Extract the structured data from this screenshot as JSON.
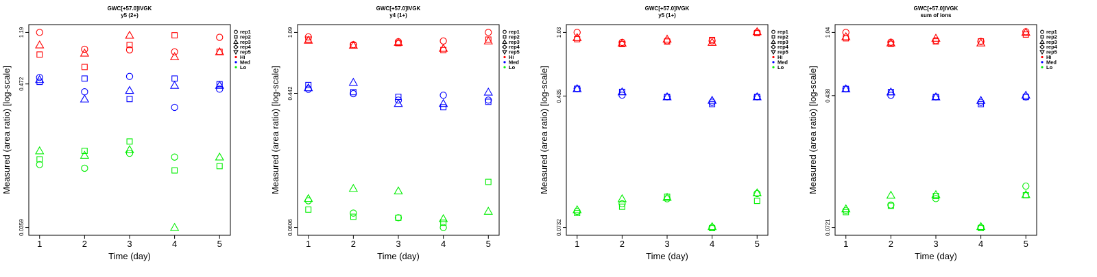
{
  "colors": {
    "Hi": "#ff0000",
    "Med": "#0000ff",
    "Lo": "#00ee00",
    "axis": "#000000"
  },
  "legend": {
    "placement": "right",
    "entries": [
      {
        "label": "rep1",
        "marker": "circle"
      },
      {
        "label": "rep2",
        "marker": "square"
      },
      {
        "label": "rep3",
        "marker": "triangle-up"
      },
      {
        "label": "rep4",
        "marker": "diamond"
      },
      {
        "label": "rep5",
        "marker": "triangle-down"
      },
      {
        "label": "Hi",
        "marker": "dot"
      },
      {
        "label": "Med",
        "marker": "dot"
      },
      {
        "label": "Lo",
        "marker": "dot"
      }
    ]
  },
  "chart_data": [
    {
      "type": "scatter",
      "title": "GWC[+57.0]IVGK",
      "subtitle": "y5 (2+)",
      "xlabel": "Time (day)",
      "ylabel": "Measured (area ratio) [log-scale]",
      "y_scale": "log",
      "xlim": [
        1,
        5
      ],
      "ylim": [
        0.0359,
        1.19
      ],
      "x_ticks": [
        "1",
        "2",
        "3",
        "4",
        "5"
      ],
      "y_ticks": [
        0.0359,
        0.472,
        1.19
      ],
      "y_tick_labels": [
        "0.0359",
        "0.472",
        "1.19"
      ],
      "series": [
        {
          "level": "Hi",
          "rep": "rep1",
          "points": [
            [
              1,
              1.19
            ],
            [
              2,
              0.88
            ],
            [
              3,
              0.87
            ],
            [
              4,
              0.84
            ],
            [
              5,
              1.09
            ]
          ]
        },
        {
          "level": "Hi",
          "rep": "rep2",
          "points": [
            [
              1,
              0.8
            ],
            [
              2,
              0.64
            ],
            [
              3,
              0.95
            ],
            [
              4,
              1.13
            ],
            [
              5,
              0.84
            ]
          ]
        },
        {
          "level": "Hi",
          "rep": "rep3",
          "points": [
            [
              1,
              0.95
            ],
            [
              2,
              0.82
            ],
            [
              3,
              1.13
            ],
            [
              4,
              0.77
            ],
            [
              5,
              0.84
            ]
          ]
        },
        {
          "level": "Med",
          "rep": "rep1",
          "points": [
            [
              1,
              0.53
            ],
            [
              2,
              0.41
            ],
            [
              3,
              0.54
            ],
            [
              4,
              0.31
            ],
            [
              5,
              0.43
            ]
          ]
        },
        {
          "level": "Med",
          "rep": "rep2",
          "points": [
            [
              1,
              0.49
            ],
            [
              2,
              0.52
            ],
            [
              3,
              0.36
            ],
            [
              4,
              0.52
            ],
            [
              5,
              0.47
            ]
          ]
        },
        {
          "level": "Med",
          "rep": "rep3",
          "points": [
            [
              1,
              0.51
            ],
            [
              2,
              0.36
            ],
            [
              3,
              0.42
            ],
            [
              4,
              0.46
            ],
            [
              5,
              0.46
            ]
          ]
        },
        {
          "level": "Lo",
          "rep": "rep1",
          "points": [
            [
              1,
              0.111
            ],
            [
              2,
              0.104
            ],
            [
              3,
              0.136
            ],
            [
              4,
              0.127
            ]
          ]
        },
        {
          "level": "Lo",
          "rep": "rep2",
          "points": [
            [
              1,
              0.122
            ],
            [
              2,
              0.142
            ],
            [
              3,
              0.168
            ],
            [
              4,
              0.1
            ],
            [
              5,
              0.108
            ]
          ]
        },
        {
          "level": "Lo",
          "rep": "rep3",
          "points": [
            [
              1,
              0.142
            ],
            [
              2,
              0.131
            ],
            [
              3,
              0.145
            ],
            [
              4,
              0.0359
            ],
            [
              5,
              0.127
            ]
          ]
        }
      ]
    },
    {
      "type": "scatter",
      "title": "GWC[+57.0]IVGK",
      "subtitle": "y4 (1+)",
      "xlabel": "Time (day)",
      "ylabel": "Measured (area ratio) [log-scale]",
      "y_scale": "log",
      "xlim": [
        1,
        5
      ],
      "ylim": [
        0.0606,
        1.09
      ],
      "x_ticks": [
        "1",
        "2",
        "3",
        "4",
        "5"
      ],
      "y_ticks": [
        0.0606,
        0.442,
        1.09
      ],
      "y_tick_labels": [
        "0.0606",
        "0.442",
        "1.09"
      ],
      "series": [
        {
          "level": "Hi",
          "rep": "rep1",
          "points": [
            [
              1,
              1.02
            ],
            [
              2,
              0.91
            ],
            [
              3,
              0.95
            ],
            [
              4,
              0.96
            ],
            [
              5,
              1.09
            ]
          ]
        },
        {
          "level": "Hi",
          "rep": "rep2",
          "points": [
            [
              1,
              0.98
            ],
            [
              2,
              0.9
            ],
            [
              3,
              0.93
            ],
            [
              4,
              0.84
            ],
            [
              5,
              0.98
            ]
          ]
        },
        {
          "level": "Hi",
          "rep": "rep3",
          "points": [
            [
              1,
              0.97
            ],
            [
              2,
              0.9
            ],
            [
              3,
              0.94
            ],
            [
              4,
              0.86
            ],
            [
              5,
              0.96
            ]
          ]
        },
        {
          "level": "Med",
          "rep": "rep1",
          "points": [
            [
              1,
              0.47
            ],
            [
              2,
              0.44
            ],
            [
              3,
              0.4
            ],
            [
              4,
              0.43
            ],
            [
              5,
              0.4
            ]
          ]
        },
        {
          "level": "Med",
          "rep": "rep2",
          "points": [
            [
              1,
              0.5
            ],
            [
              2,
              0.45
            ],
            [
              3,
              0.42
            ],
            [
              4,
              0.36
            ],
            [
              5,
              0.39
            ]
          ]
        },
        {
          "level": "Med",
          "rep": "rep3",
          "points": [
            [
              1,
              0.48
            ],
            [
              2,
              0.52
            ],
            [
              3,
              0.38
            ],
            [
              4,
              0.38
            ],
            [
              5,
              0.45
            ]
          ]
        },
        {
          "level": "Lo",
          "rep": "rep1",
          "points": [
            [
              1,
              0.09
            ],
            [
              2,
              0.075
            ],
            [
              3,
              0.07
            ],
            [
              4,
              0.0606
            ]
          ]
        },
        {
          "level": "Lo",
          "rep": "rep2",
          "points": [
            [
              1,
              0.079
            ],
            [
              2,
              0.071
            ],
            [
              3,
              0.07
            ],
            [
              4,
              0.065
            ],
            [
              5,
              0.119
            ]
          ]
        },
        {
          "level": "Lo",
          "rep": "rep3",
          "points": [
            [
              1,
              0.093
            ],
            [
              2,
              0.108
            ],
            [
              3,
              0.104
            ],
            [
              4,
              0.069
            ],
            [
              5,
              0.077
            ]
          ]
        }
      ]
    },
    {
      "type": "scatter",
      "title": "GWC[+57.0]IVGK",
      "subtitle": "y5 (1+)",
      "xlabel": "Time (day)",
      "ylabel": "Measured (area ratio) [log-scale]",
      "y_scale": "log",
      "xlim": [
        1,
        5
      ],
      "ylim": [
        0.0732,
        1.03
      ],
      "x_ticks": [
        "1",
        "2",
        "3",
        "4",
        "5"
      ],
      "y_ticks": [
        0.0732,
        0.435,
        1.03
      ],
      "y_tick_labels": [
        "0.0732",
        "0.435",
        "1.03"
      ],
      "series": [
        {
          "level": "Hi",
          "rep": "rep1",
          "points": [
            [
              1,
              1.03
            ],
            [
              2,
              0.9
            ],
            [
              3,
              0.92
            ],
            [
              4,
              0.92
            ],
            [
              5,
              1.03
            ]
          ]
        },
        {
          "level": "Hi",
          "rep": "rep2",
          "points": [
            [
              1,
              0.94
            ],
            [
              2,
              0.88
            ],
            [
              3,
              0.91
            ],
            [
              4,
              0.93
            ],
            [
              5,
              1.02
            ]
          ]
        },
        {
          "level": "Hi",
          "rep": "rep3",
          "points": [
            [
              1,
              0.96
            ],
            [
              2,
              0.89
            ],
            [
              3,
              0.94
            ],
            [
              4,
              0.9
            ],
            [
              5,
              1.04
            ]
          ]
        },
        {
          "level": "Med",
          "rep": "rep1",
          "points": [
            [
              1,
              0.48
            ],
            [
              2,
              0.44
            ],
            [
              3,
              0.43
            ],
            [
              4,
              0.4
            ],
            [
              5,
              0.43
            ]
          ]
        },
        {
          "level": "Med",
          "rep": "rep2",
          "points": [
            [
              1,
              0.48
            ],
            [
              2,
              0.46
            ],
            [
              3,
              0.43
            ],
            [
              4,
              0.39
            ],
            [
              5,
              0.43
            ]
          ]
        },
        {
          "level": "Med",
          "rep": "rep3",
          "points": [
            [
              1,
              0.48
            ],
            [
              2,
              0.46
            ],
            [
              3,
              0.43
            ],
            [
              4,
              0.41
            ],
            [
              5,
              0.43
            ]
          ]
        },
        {
          "level": "Lo",
          "rep": "rep1",
          "points": [
            [
              1,
              0.091
            ],
            [
              2,
              0.101
            ],
            [
              3,
              0.108
            ],
            [
              4,
              0.0732
            ],
            [
              5,
              0.116
            ]
          ]
        },
        {
          "level": "Lo",
          "rep": "rep2",
          "points": [
            [
              1,
              0.089
            ],
            [
              2,
              0.097
            ],
            [
              3,
              0.111
            ],
            [
              4,
              0.0726
            ],
            [
              5,
              0.105
            ]
          ]
        },
        {
          "level": "Lo",
          "rep": "rep3",
          "points": [
            [
              1,
              0.093
            ],
            [
              2,
              0.108
            ],
            [
              3,
              0.11
            ],
            [
              4,
              0.074
            ],
            [
              5,
              0.117
            ]
          ]
        }
      ]
    },
    {
      "type": "scatter",
      "title": "GWC[+57.0]IVGK",
      "subtitle": "sum of ions",
      "xlabel": "Time (day)",
      "ylabel": "Measured (area ratio) [log-scale]",
      "y_scale": "log",
      "xlim": [
        1,
        5
      ],
      "ylim": [
        0.0721,
        1.04
      ],
      "x_ticks": [
        "1",
        "2",
        "3",
        "4",
        "5"
      ],
      "y_ticks": [
        0.0721,
        0.438,
        1.04
      ],
      "y_tick_labels": [
        "0.0721",
        "0.438",
        "1.04"
      ],
      "series": [
        {
          "level": "Hi",
          "rep": "rep1",
          "points": [
            [
              1,
              1.04
            ],
            [
              2,
              0.91
            ],
            [
              3,
              0.93
            ],
            [
              4,
              0.92
            ],
            [
              5,
              1.05
            ]
          ]
        },
        {
          "level": "Hi",
          "rep": "rep2",
          "points": [
            [
              1,
              0.96
            ],
            [
              2,
              0.89
            ],
            [
              3,
              0.92
            ],
            [
              4,
              0.92
            ],
            [
              5,
              1.01
            ]
          ]
        },
        {
          "level": "Hi",
          "rep": "rep3",
          "points": [
            [
              1,
              0.98
            ],
            [
              2,
              0.9
            ],
            [
              3,
              0.96
            ],
            [
              4,
              0.9
            ],
            [
              5,
              1.04
            ]
          ]
        },
        {
          "level": "Med",
          "rep": "rep1",
          "points": [
            [
              1,
              0.48
            ],
            [
              2,
              0.44
            ],
            [
              3,
              0.43
            ],
            [
              4,
              0.4
            ],
            [
              5,
              0.43
            ]
          ]
        },
        {
          "level": "Med",
          "rep": "rep2",
          "points": [
            [
              1,
              0.48
            ],
            [
              2,
              0.46
            ],
            [
              3,
              0.43
            ],
            [
              4,
              0.39
            ],
            [
              5,
              0.43
            ]
          ]
        },
        {
          "level": "Med",
          "rep": "rep3",
          "points": [
            [
              1,
              0.48
            ],
            [
              2,
              0.46
            ],
            [
              3,
              0.43
            ],
            [
              4,
              0.41
            ],
            [
              5,
              0.44
            ]
          ]
        },
        {
          "level": "Lo",
          "rep": "rep1",
          "points": [
            [
              1,
              0.091
            ],
            [
              2,
              0.098
            ],
            [
              3,
              0.107
            ],
            [
              4,
              0.0721
            ],
            [
              5,
              0.127
            ]
          ]
        },
        {
          "level": "Lo",
          "rep": "rep2",
          "points": [
            [
              1,
              0.089
            ],
            [
              2,
              0.097
            ],
            [
              3,
              0.111
            ],
            [
              4,
              0.0716
            ],
            [
              5,
              0.112
            ]
          ]
        },
        {
          "level": "Lo",
          "rep": "rep3",
          "points": [
            [
              1,
              0.093
            ],
            [
              2,
              0.112
            ],
            [
              3,
              0.113
            ],
            [
              4,
              0.073
            ],
            [
              5,
              0.113
            ]
          ]
        }
      ]
    }
  ]
}
